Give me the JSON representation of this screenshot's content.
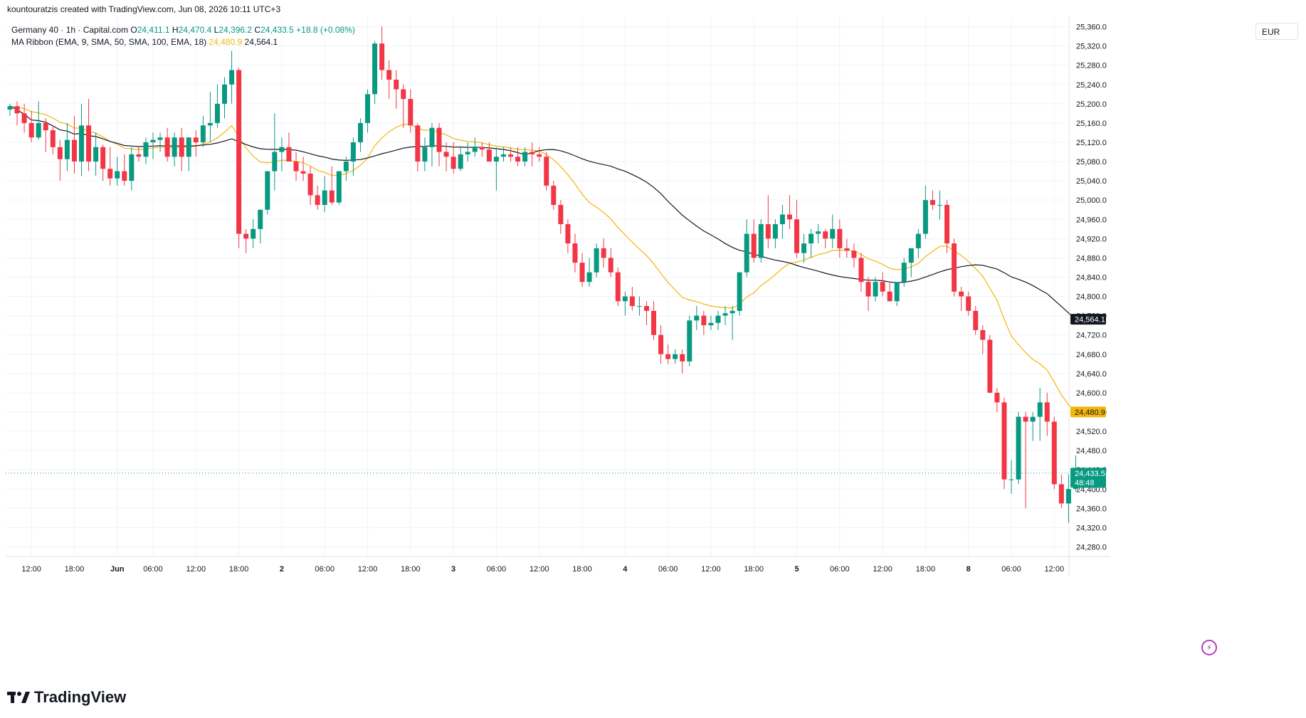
{
  "header": {
    "attribution": "kountouratzis created with TradingView.com, Jun 08, 2026 10:11 UTC+3"
  },
  "legend": {
    "symbol_line": "Germany 40 · 1h · Capital.com",
    "open_label": "O",
    "open": "24,411.1",
    "high_label": "H",
    "high": "24,470.4",
    "low_label": "L",
    "low": "24,396.2",
    "close_label": "C",
    "close": "24,433.5",
    "change": "+18.8 (+0.08%)",
    "indicator": "MA Ribbon (EMA, 9, SMA, 50, SMA, 100, EMA, 18)",
    "ema_value": "24,480.9",
    "sma_value": "24,564.1"
  },
  "currency": "EUR",
  "brand": "TradingView",
  "colors": {
    "up": "#089981",
    "down": "#f23645",
    "ema": "#f2b70c",
    "sma": "#131722",
    "grid": "#f0f3fa"
  },
  "chart_data": {
    "type": "candlestick",
    "title": "Germany 40 · 1h · Capital.com",
    "ylim": [
      24260,
      25380
    ],
    "y_ticks": [
      25360,
      25320,
      25280,
      25240,
      25200,
      25160,
      25120,
      25080,
      25040,
      25000,
      24960,
      24920,
      24880,
      24840,
      24800,
      24760,
      24720,
      24680,
      24640,
      24600,
      24560,
      24520,
      24480,
      24440,
      24400,
      24360,
      24320,
      24280
    ],
    "y_tick_labels": [
      "25,360.0",
      "25,320.0",
      "25,280.0",
      "25,240.0",
      "25,200.0",
      "25,160.0",
      "25,120.0",
      "25,080.0",
      "25,040.0",
      "25,000.0",
      "24,960.0",
      "24,920.0",
      "24,880.0",
      "24,840.0",
      "24,800.0",
      "24,760.0",
      "24,720.0",
      "24,680.0",
      "24,640.0",
      "24,600.0",
      "24,560.0",
      "24,520.0",
      "24,480.0",
      "24,440.0",
      "24,400.0",
      "24,360.0",
      "24,320.0",
      "24,280.0"
    ],
    "x_labels": [
      {
        "label": "12:00",
        "bar": 3
      },
      {
        "label": "18:00",
        "bar": 9
      },
      {
        "label": "Jun",
        "bar": 15
      },
      {
        "label": "06:00",
        "bar": 20
      },
      {
        "label": "12:00",
        "bar": 26
      },
      {
        "label": "18:00",
        "bar": 32
      },
      {
        "label": "2",
        "bar": 38
      },
      {
        "label": "06:00",
        "bar": 44
      },
      {
        "label": "12:00",
        "bar": 50
      },
      {
        "label": "18:00",
        "bar": 56
      },
      {
        "label": "3",
        "bar": 62
      },
      {
        "label": "06:00",
        "bar": 68
      },
      {
        "label": "12:00",
        "bar": 74
      },
      {
        "label": "18:00",
        "bar": 80
      },
      {
        "label": "4",
        "bar": 86
      },
      {
        "label": "06:00",
        "bar": 92
      },
      {
        "label": "12:00",
        "bar": 98
      },
      {
        "label": "18:00",
        "bar": 104
      },
      {
        "label": "5",
        "bar": 110
      },
      {
        "label": "06:00",
        "bar": 116
      },
      {
        "label": "12:00",
        "bar": 122
      },
      {
        "label": "18:00",
        "bar": 128
      },
      {
        "label": "8",
        "bar": 134
      },
      {
        "label": "06:00",
        "bar": 140
      },
      {
        "label": "12:00",
        "bar": 146
      }
    ],
    "candles": [
      [
        25188,
        25200,
        25175,
        25195
      ],
      [
        25195,
        25205,
        25155,
        25180
      ],
      [
        25180,
        25200,
        25140,
        25160
      ],
      [
        25160,
        25185,
        25120,
        25130
      ],
      [
        25130,
        25205,
        25125,
        25160
      ],
      [
        25160,
        25170,
        25100,
        25145
      ],
      [
        25145,
        25155,
        25095,
        25110
      ],
      [
        25110,
        25125,
        25040,
        25085
      ],
      [
        25085,
        25160,
        25060,
        25125
      ],
      [
        25125,
        25175,
        25055,
        25080
      ],
      [
        25080,
        25200,
        25050,
        25155
      ],
      [
        25155,
        25210,
        25060,
        25080
      ],
      [
        25080,
        25140,
        25050,
        25110
      ],
      [
        25110,
        25115,
        25040,
        25065
      ],
      [
        25065,
        25110,
        25030,
        25045
      ],
      [
        25045,
        25090,
        25030,
        25060
      ],
      [
        25060,
        25095,
        25030,
        25040
      ],
      [
        25040,
        25110,
        25020,
        25095
      ],
      [
        25095,
        25110,
        25080,
        25090
      ],
      [
        25090,
        25130,
        25075,
        25120
      ],
      [
        25120,
        25140,
        25085,
        25125
      ],
      [
        25125,
        25140,
        25100,
        25130
      ],
      [
        25130,
        25150,
        25080,
        25090
      ],
      [
        25090,
        25140,
        25070,
        25130
      ],
      [
        25130,
        25150,
        25060,
        25090
      ],
      [
        25090,
        25130,
        25060,
        25130
      ],
      [
        25130,
        25145,
        25090,
        25120
      ],
      [
        25120,
        25175,
        25110,
        25155
      ],
      [
        25155,
        25225,
        25120,
        25160
      ],
      [
        25160,
        25240,
        25150,
        25200
      ],
      [
        25200,
        25255,
        25170,
        25240
      ],
      [
        25240,
        25310,
        25200,
        25270
      ],
      [
        25270,
        25275,
        24900,
        24930
      ],
      [
        24930,
        24940,
        24890,
        24920
      ],
      [
        24920,
        24960,
        24900,
        24940
      ],
      [
        24940,
        24980,
        24910,
        24980
      ],
      [
        24980,
        25060,
        24970,
        25060
      ],
      [
        25060,
        25180,
        25020,
        25100
      ],
      [
        25100,
        25130,
        25060,
        25110
      ],
      [
        25110,
        25140,
        25080,
        25080
      ],
      [
        25080,
        25100,
        25040,
        25060
      ],
      [
        25060,
        25090,
        25040,
        25055
      ],
      [
        25055,
        25070,
        24990,
        25010
      ],
      [
        25010,
        25030,
        24980,
        24990
      ],
      [
        24990,
        25050,
        24975,
        25020
      ],
      [
        25020,
        25070,
        24990,
        24995
      ],
      [
        24995,
        25060,
        24990,
        25060
      ],
      [
        25060,
        25090,
        25040,
        25080
      ],
      [
        25080,
        25130,
        25050,
        25120
      ],
      [
        25120,
        25170,
        25100,
        25160
      ],
      [
        25160,
        25230,
        25140,
        25220
      ],
      [
        25220,
        25330,
        25200,
        25325
      ],
      [
        25325,
        25360,
        25250,
        25270
      ],
      [
        25270,
        25290,
        25210,
        25250
      ],
      [
        25250,
        25270,
        25190,
        25230
      ],
      [
        25230,
        25240,
        25150,
        25210
      ],
      [
        25210,
        25230,
        25140,
        25155
      ],
      [
        25155,
        25160,
        25060,
        25080
      ],
      [
        25080,
        25130,
        25060,
        25110
      ],
      [
        25110,
        25160,
        25070,
        25150
      ],
      [
        25150,
        25160,
        25070,
        25100
      ],
      [
        25100,
        25120,
        25060,
        25090
      ],
      [
        25090,
        25120,
        25055,
        25065
      ],
      [
        25065,
        25110,
        25060,
        25095
      ],
      [
        25095,
        25120,
        25080,
        25100
      ],
      [
        25100,
        25130,
        25090,
        25110
      ],
      [
        25110,
        25120,
        25090,
        25105
      ],
      [
        25105,
        25120,
        25080,
        25080
      ],
      [
        25080,
        25110,
        25020,
        25090
      ],
      [
        25090,
        25110,
        25080,
        25095
      ],
      [
        25095,
        25110,
        25080,
        25090
      ],
      [
        25090,
        25110,
        25070,
        25080
      ],
      [
        25080,
        25110,
        25070,
        25100
      ],
      [
        25100,
        25120,
        25070,
        25095
      ],
      [
        25095,
        25110,
        25080,
        25090
      ],
      [
        25090,
        25100,
        25020,
        25030
      ],
      [
        25030,
        25040,
        24980,
        24990
      ],
      [
        24990,
        25000,
        24930,
        24950
      ],
      [
        24950,
        24960,
        24890,
        24910
      ],
      [
        24910,
        24930,
        24850,
        24870
      ],
      [
        24870,
        24890,
        24820,
        24830
      ],
      [
        24830,
        24880,
        24820,
        24850
      ],
      [
        24850,
        24910,
        24840,
        24900
      ],
      [
        24900,
        24920,
        24860,
        24880
      ],
      [
        24880,
        24900,
        24840,
        24850
      ],
      [
        24850,
        24860,
        24780,
        24790
      ],
      [
        24790,
        24810,
        24760,
        24800
      ],
      [
        24800,
        24820,
        24770,
        24780
      ],
      [
        24780,
        24800,
        24760,
        24780
      ],
      [
        24780,
        24790,
        24740,
        24770
      ],
      [
        24770,
        24790,
        24710,
        24720
      ],
      [
        24720,
        24740,
        24660,
        24680
      ],
      [
        24680,
        24700,
        24660,
        24670
      ],
      [
        24670,
        24690,
        24660,
        24680
      ],
      [
        24680,
        24690,
        24640,
        24665
      ],
      [
        24665,
        24760,
        24655,
        24750
      ],
      [
        24750,
        24780,
        24730,
        24760
      ],
      [
        24760,
        24770,
        24720,
        24740
      ],
      [
        24740,
        24760,
        24730,
        24745
      ],
      [
        24745,
        24770,
        24730,
        24760
      ],
      [
        24760,
        24780,
        24740,
        24765
      ],
      [
        24765,
        24780,
        24710,
        24770
      ],
      [
        24770,
        24850,
        24760,
        24850
      ],
      [
        24850,
        24960,
        24840,
        24930
      ],
      [
        24930,
        24960,
        24870,
        24880
      ],
      [
        24880,
        24960,
        24870,
        24950
      ],
      [
        24950,
        25010,
        24900,
        24920
      ],
      [
        24920,
        24960,
        24900,
        24950
      ],
      [
        24950,
        24990,
        24920,
        24970
      ],
      [
        24970,
        25010,
        24940,
        24960
      ],
      [
        24960,
        25000,
        24880,
        24890
      ],
      [
        24890,
        24930,
        24870,
        24910
      ],
      [
        24910,
        24940,
        24880,
        24930
      ],
      [
        24930,
        24950,
        24910,
        24935
      ],
      [
        24935,
        24940,
        24900,
        24920
      ],
      [
        24920,
        24970,
        24900,
        24940
      ],
      [
        24940,
        24960,
        24880,
        24900
      ],
      [
        24900,
        24920,
        24880,
        24895
      ],
      [
        24895,
        24910,
        24860,
        24880
      ],
      [
        24880,
        24890,
        24810,
        24830
      ],
      [
        24830,
        24840,
        24770,
        24800
      ],
      [
        24800,
        24840,
        24790,
        24830
      ],
      [
        24830,
        24850,
        24800,
        24810
      ],
      [
        24810,
        24830,
        24790,
        24790
      ],
      [
        24790,
        24830,
        24780,
        24830
      ],
      [
        24830,
        24880,
        24820,
        24870
      ],
      [
        24870,
        24900,
        24840,
        24900
      ],
      [
        24900,
        24940,
        24880,
        24930
      ],
      [
        24930,
        25030,
        24920,
        25000
      ],
      [
        25000,
        25020,
        24980,
        24990
      ],
      [
        24990,
        25020,
        24960,
        24990
      ],
      [
        24990,
        25000,
        24890,
        24910
      ],
      [
        24910,
        24920,
        24800,
        24810
      ],
      [
        24810,
        24820,
        24770,
        24800
      ],
      [
        24800,
        24810,
        24760,
        24770
      ],
      [
        24770,
        24780,
        24720,
        24730
      ],
      [
        24730,
        24740,
        24680,
        24710
      ],
      [
        24710,
        24720,
        24600,
        24600
      ],
      [
        24600,
        24610,
        24560,
        24580
      ],
      [
        24580,
        24590,
        24400,
        24420
      ],
      [
        24420,
        24460,
        24390,
        24420
      ],
      [
        24420,
        24560,
        24410,
        24550
      ],
      [
        24550,
        24560,
        24360,
        24540
      ],
      [
        24540,
        24560,
        24500,
        24550
      ],
      [
        24550,
        24610,
        24500,
        24580
      ],
      [
        24580,
        24600,
        24510,
        24540
      ],
      [
        24540,
        24550,
        24400,
        24410
      ],
      [
        24410,
        24430,
        24360,
        24370
      ],
      [
        24370,
        24430,
        24330,
        24400
      ],
      [
        24400,
        24470,
        24395,
        24433
      ]
    ]
  }
}
